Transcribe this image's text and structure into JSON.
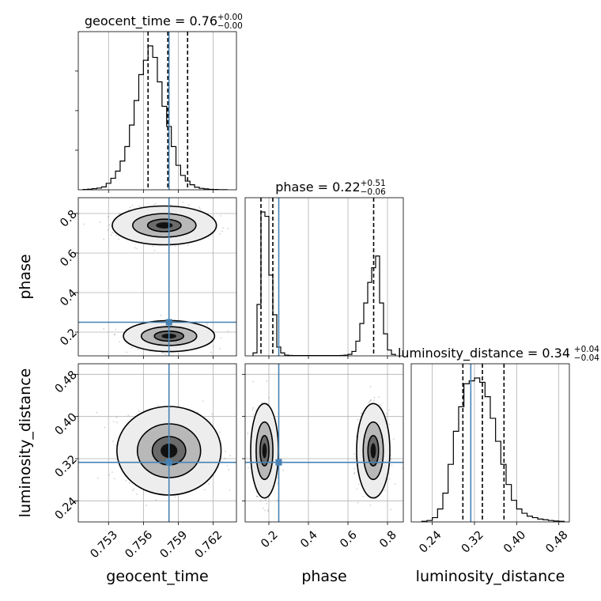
{
  "chart_data": {
    "type": "corner",
    "parameters": [
      {
        "name": "geocent_time",
        "label": "geocent_time",
        "range": [
          0.7504,
          0.764
        ],
        "ticks": [
          0.753,
          0.756,
          0.759,
          0.762
        ],
        "tick_labels": [
          "0.753",
          "0.756",
          "0.759",
          "0.762"
        ],
        "truth": 0.7582,
        "quantiles": [
          0.7564,
          0.7581,
          0.7598
        ],
        "title": {
          "main": "geocent_time = 0.76",
          "sup": "+0.00",
          "sub": "−0.00"
        },
        "hist_edges": [
          0.7508,
          0.7512,
          0.7516,
          0.752,
          0.7524,
          0.7528,
          0.7532,
          0.7536,
          0.754,
          0.7544,
          0.7548,
          0.7552,
          0.7556,
          0.756,
          0.7564,
          0.7568,
          0.7572,
          0.7576,
          0.758,
          0.7584,
          0.7588,
          0.7592,
          0.7596,
          0.76,
          0.7604,
          0.7608,
          0.7612,
          0.7616,
          0.762,
          0.7624,
          0.7628,
          0.7632
        ],
        "hist": [
          0.002,
          0.004,
          0.008,
          0.012,
          0.02,
          0.045,
          0.08,
          0.13,
          0.2,
          0.3,
          0.45,
          0.62,
          0.8,
          0.9,
          1.0,
          0.92,
          0.75,
          0.58,
          0.44,
          0.3,
          0.17,
          0.1,
          0.06,
          0.035,
          0.018,
          0.01,
          0.006,
          0.003,
          0.002,
          0.001,
          0.001
        ]
      },
      {
        "name": "phase",
        "label": "phase",
        "range": [
          0.08,
          0.88
        ],
        "ticks": [
          0.2,
          0.4,
          0.6,
          0.8
        ],
        "tick_labels": [
          "0.2",
          "0.4",
          "0.6",
          "0.8"
        ],
        "truth": 0.25,
        "quantiles": [
          0.16,
          0.22,
          0.73
        ],
        "title": {
          "main": "phase = 0.22",
          "sup": "+0.51",
          "sub": "−0.06"
        },
        "hist_edges": [
          0.12,
          0.14,
          0.16,
          0.18,
          0.2,
          0.22,
          0.24,
          0.26,
          0.28,
          0.3,
          0.32,
          0.34,
          0.36,
          0.38,
          0.4,
          0.42,
          0.44,
          0.46,
          0.48,
          0.5,
          0.52,
          0.54,
          0.56,
          0.58,
          0.6,
          0.62,
          0.64,
          0.66,
          0.68,
          0.7,
          0.72,
          0.74,
          0.76,
          0.78,
          0.8,
          0.82,
          0.84
        ],
        "hist": [
          0.02,
          0.35,
          0.98,
          0.95,
          0.55,
          0.28,
          0.06,
          0.02,
          0.005,
          0.003,
          0.002,
          0.002,
          0.002,
          0.002,
          0.002,
          0.002,
          0.002,
          0.002,
          0.002,
          0.002,
          0.002,
          0.002,
          0.003,
          0.005,
          0.01,
          0.03,
          0.1,
          0.22,
          0.36,
          0.5,
          0.6,
          0.68,
          0.36,
          0.15,
          0.04,
          0.01
        ]
      },
      {
        "name": "luminosity_distance",
        "label": "luminosity_distance",
        "range": [
          0.2,
          0.5
        ],
        "ticks": [
          0.24,
          0.32,
          0.4,
          0.48
        ],
        "tick_labels": [
          "0.24",
          "0.32",
          "0.40",
          "0.48"
        ],
        "truth": 0.313,
        "quantiles": [
          0.298,
          0.335,
          0.376
        ],
        "title": {
          "main": "luminosity_distance = 0.34",
          "sup": "+0.04",
          "sub": "−0.04"
        },
        "hist_edges": [
          0.22,
          0.23,
          0.24,
          0.25,
          0.26,
          0.27,
          0.28,
          0.29,
          0.3,
          0.31,
          0.32,
          0.33,
          0.34,
          0.35,
          0.36,
          0.37,
          0.38,
          0.39,
          0.4,
          0.41,
          0.42,
          0.43,
          0.44,
          0.45,
          0.46,
          0.47,
          0.48,
          0.49
        ],
        "hist": [
          0.004,
          0.01,
          0.03,
          0.09,
          0.2,
          0.4,
          0.63,
          0.8,
          0.96,
          0.98,
          1.0,
          0.97,
          0.87,
          0.72,
          0.56,
          0.4,
          0.26,
          0.15,
          0.09,
          0.06,
          0.04,
          0.03,
          0.02,
          0.015,
          0.01,
          0.006,
          0.004
        ]
      }
    ],
    "pairs": [
      {
        "x": "geocent_time",
        "y": "phase",
        "modes": [
          {
            "cx": 0.7582,
            "cy": 0.18,
            "sx": 0.0014,
            "sy": 0.028,
            "levels": [
              0.9,
              1.7,
              2.8
            ]
          },
          {
            "cx": 0.7578,
            "cy": 0.74,
            "sx": 0.0016,
            "sy": 0.035,
            "levels": [
              0.9,
              1.7,
              2.8
            ]
          }
        ]
      },
      {
        "x": "geocent_time",
        "y": "luminosity_distance",
        "modes": [
          {
            "cx": 0.7582,
            "cy": 0.335,
            "sx": 0.0016,
            "sy": 0.03,
            "levels": [
              0.9,
              1.7,
              2.8
            ]
          }
        ]
      },
      {
        "x": "phase",
        "y": "luminosity_distance",
        "modes": [
          {
            "cx": 0.178,
            "cy": 0.335,
            "sx": 0.025,
            "sy": 0.032,
            "levels": [
              0.9,
              1.7,
              2.8
            ]
          },
          {
            "cx": 0.728,
            "cy": 0.335,
            "sx": 0.03,
            "sy": 0.032,
            "levels": [
              0.9,
              1.7,
              2.8
            ]
          }
        ]
      }
    ],
    "truth_color": "#4682b4",
    "hist_color": "#000000",
    "grid": true
  }
}
